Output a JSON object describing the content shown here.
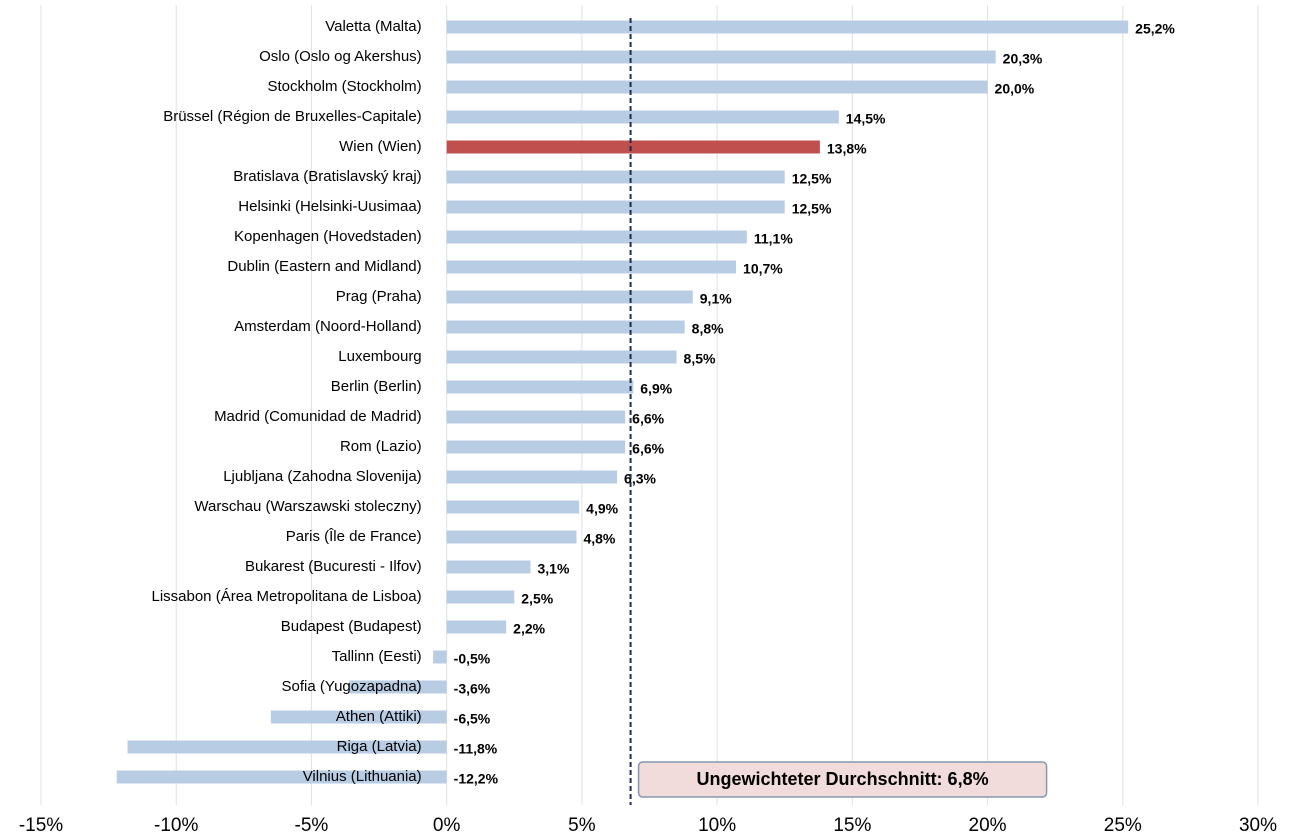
{
  "chart_data": {
    "type": "barh",
    "categories": [
      "Valetta (Malta)",
      "Oslo (Oslo og Akershus)",
      "Stockholm (Stockholm)",
      "Brüssel (Région de Bruxelles-Capitale)",
      "Wien (Wien)",
      "Bratislava (Bratislavský kraj)",
      "Helsinki (Helsinki-Uusimaa)",
      "Kopenhagen (Hovedstaden)",
      "Dublin (Eastern and Midland)",
      "Prag (Praha)",
      "Amsterdam (Noord-Holland)",
      "Luxembourg",
      "Berlin (Berlin)",
      "Madrid (Comunidad de Madrid)",
      "Rom (Lazio)",
      "Ljubljana (Zahodna Slovenija)",
      "Warschau (Warszawski stoleczny)",
      "Paris (Île de France)",
      "Bukarest (Bucuresti - Ilfov)",
      "Lissabon (Área Metropolitana de Lisboa)",
      "Budapest (Budapest)",
      "Tallinn (Eesti)",
      "Sofia (Yugozapadna)",
      "Athen (Attiki)",
      "Riga (Latvia)",
      "Vilnius (Lithuania)"
    ],
    "values": [
      25.2,
      20.3,
      20.0,
      14.5,
      13.8,
      12.5,
      12.5,
      11.1,
      10.7,
      9.1,
      8.8,
      8.5,
      6.9,
      6.6,
      6.6,
      6.3,
      4.9,
      4.8,
      3.1,
      2.5,
      2.2,
      -0.5,
      -3.6,
      -6.5,
      -11.8,
      -12.2
    ],
    "value_labels": [
      "25,2%",
      "20,3%",
      "20,0%",
      "14,5%",
      "13,8%",
      "12,5%",
      "12,5%",
      "11,1%",
      "10,7%",
      "9,1%",
      "8,8%",
      "8,5%",
      "6,9%",
      "6,6%",
      "6,6%",
      "6,3%",
      "4,9%",
      "4,8%",
      "3,1%",
      "2,5%",
      "2,2%",
      "-0,5%",
      "-3,6%",
      "-6,5%",
      "-11,8%",
      "-12,2%"
    ],
    "colors": [
      "#b8cce4",
      "#b8cce4",
      "#b8cce4",
      "#b8cce4",
      "#c0504d",
      "#b8cce4",
      "#b8cce4",
      "#b8cce4",
      "#b8cce4",
      "#b8cce4",
      "#b8cce4",
      "#b8cce4",
      "#b8cce4",
      "#b8cce4",
      "#b8cce4",
      "#b8cce4",
      "#b8cce4",
      "#b8cce4",
      "#b8cce4",
      "#b8cce4",
      "#b8cce4",
      "#b8cce4",
      "#b8cce4",
      "#b8cce4",
      "#b8cce4",
      "#b8cce4"
    ],
    "xlim": [
      -15,
      30
    ],
    "xticks": [
      {
        "value": -15,
        "label": "-15%"
      },
      {
        "value": -10,
        "label": "-10%"
      },
      {
        "value": -5,
        "label": "-5%"
      },
      {
        "value": 0,
        "label": "0%"
      },
      {
        "value": 5,
        "label": "5%"
      },
      {
        "value": 10,
        "label": "10%"
      },
      {
        "value": 15,
        "label": "15%"
      },
      {
        "value": 20,
        "label": "20%"
      },
      {
        "value": 25,
        "label": "25%"
      },
      {
        "value": 30,
        "label": "30%"
      }
    ],
    "grid": true,
    "average": {
      "value": 6.8,
      "label": "Ungewichteter Durchschnitt: 6,8%"
    }
  }
}
